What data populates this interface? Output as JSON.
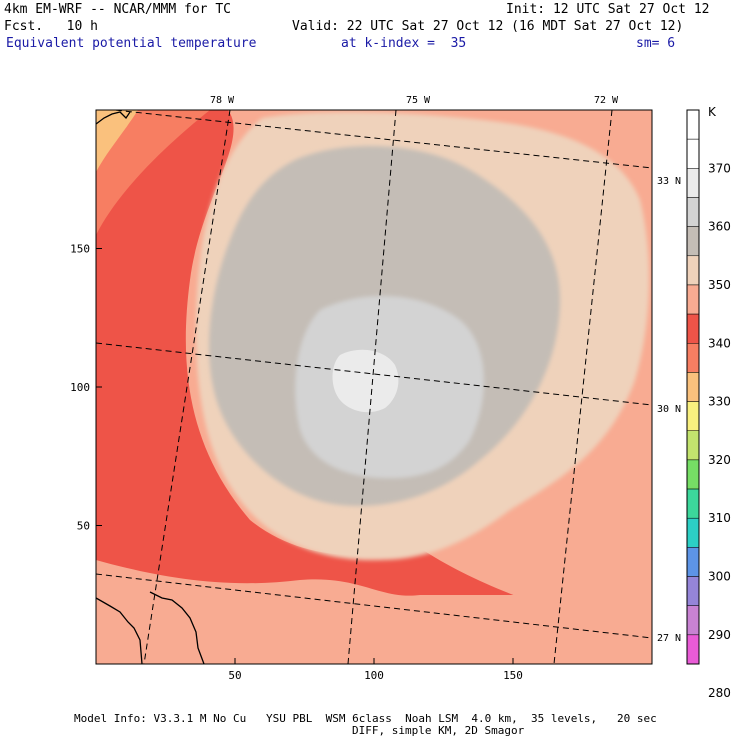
{
  "header": {
    "model_line": "4km EM-WRF -- NCAR/MMM for TC",
    "init_line": "Init: 12 UTC Sat 27 Oct 12",
    "fcst_line": "Fcst.   10 h",
    "valid_line": "Valid: 22 UTC Sat 27 Oct 12 (16 MDT Sat 27 Oct 12)",
    "field_label": "Equivalent potential temperature",
    "level_label": "at k-index =  35",
    "smooth_label": "sm= 6"
  },
  "footer": {
    "line1": "Model Info: V3.3.1 M No Cu   YSU PBL  WSM 6class  Noah LSM  4.0 km,  35 levels,   20 sec",
    "line2": "DIFF, simple KM, 2D Smagor"
  },
  "chart_data": {
    "type": "heatmap",
    "title": "Equivalent potential temperature",
    "x_ticks": [
      50,
      100,
      150
    ],
    "y_ticks": [
      50,
      100,
      150
    ],
    "xlim": [
      0,
      200
    ],
    "ylim": [
      0,
      200
    ],
    "lon_labels": [
      "78 W",
      "75 W",
      "72 W"
    ],
    "lat_labels": [
      "33 N",
      "30 N",
      "27 N"
    ],
    "colorbar": {
      "unit": "K",
      "tick_labels": [
        "370",
        "360",
        "350",
        "340",
        "330",
        "320",
        "310",
        "300",
        "290",
        "280"
      ],
      "bins_top_to_bottom": [
        {
          "color": "#ffffff"
        },
        {
          "color": "#ffffff"
        },
        {
          "color": "#ebebeb"
        },
        {
          "color": "#d3d3d3"
        },
        {
          "color": "#c4bdb6"
        },
        {
          "color": "#efd2bb"
        },
        {
          "color": "#f8ab92"
        },
        {
          "color": "#ee5448"
        },
        {
          "color": "#f77e62"
        },
        {
          "color": "#fac17d"
        },
        {
          "color": "#f9f07f"
        },
        {
          "color": "#c3e36e"
        },
        {
          "color": "#76de65"
        },
        {
          "color": "#3cd79b"
        },
        {
          "color": "#2ccfc5"
        },
        {
          "color": "#5d94e6"
        },
        {
          "color": "#9585d8"
        },
        {
          "color": "#c882d2"
        },
        {
          "color": "#e95bd6"
        }
      ]
    }
  }
}
